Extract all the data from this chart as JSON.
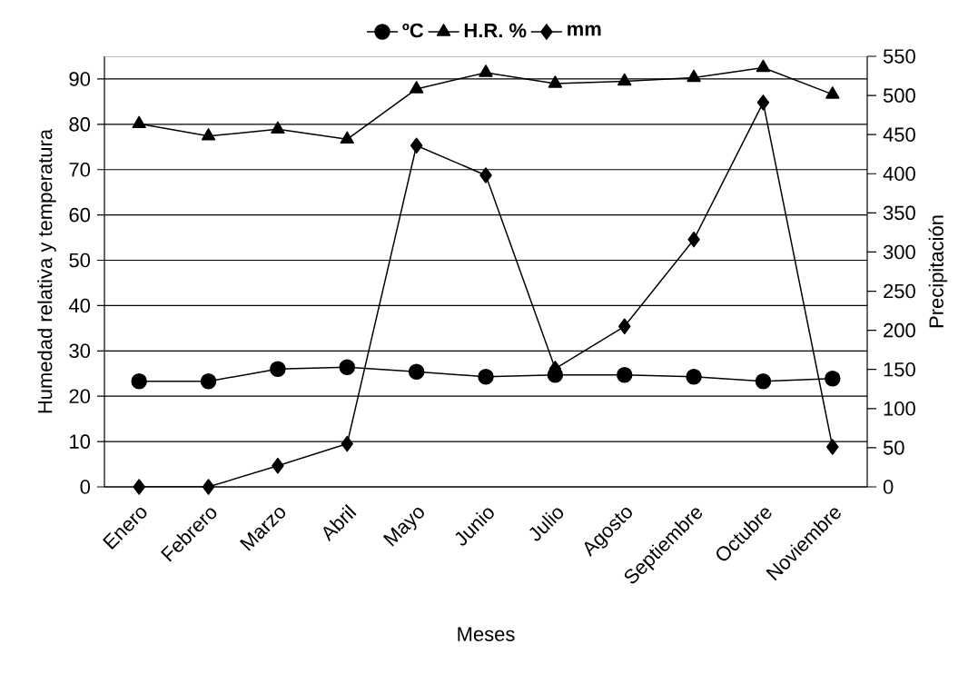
{
  "chart_data": {
    "type": "line",
    "xlabel": "Meses",
    "ylabel": "Humedad relativa y temperatura",
    "y2label": "Precipitación",
    "categories": [
      "Enero",
      "Febrero",
      "Marzo",
      "Abril",
      "Mayo",
      "Junio",
      "Julio",
      "Agosto",
      "Septiembre",
      "Octubre",
      "Noviembre"
    ],
    "series": [
      {
        "name": "ºC",
        "color": "#000000",
        "marker": "circle",
        "values": [
          23.3,
          23.3,
          26.0,
          26.4,
          25.4,
          24.3,
          24.7,
          24.7,
          24.3,
          23.3,
          23.9
        ]
      },
      {
        "name": "H.R. %",
        "color": "#000000",
        "marker": "triangle",
        "values": [
          80.1,
          77.4,
          78.9,
          76.7,
          87.8,
          91.4,
          89.0,
          89.5,
          90.3,
          92.5,
          86.6
        ]
      },
      {
        "name": "mm",
        "color": "#000000",
        "marker": "diamond",
        "axis": "y2",
        "values": [
          0,
          0,
          27,
          55,
          436,
          398,
          151,
          205,
          316,
          491,
          51
        ]
      }
    ],
    "ylim": [
      0,
      95
    ],
    "yticks": [
      0,
      10,
      20,
      30,
      40,
      50,
      60,
      70,
      80,
      90
    ],
    "y2lim": [
      0,
      550
    ],
    "y2ticks": [
      0,
      50,
      100,
      150,
      200,
      250,
      300,
      350,
      400,
      450,
      500,
      550
    ],
    "grid": "y",
    "legend": "top"
  }
}
